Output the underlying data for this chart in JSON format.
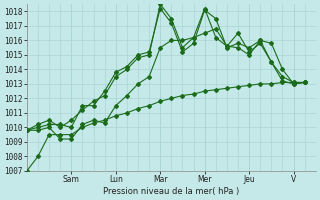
{
  "xlabel": "Pression niveau de la mer( hPa )",
  "bg_color": "#c5e8e8",
  "grid_color": "#aad4d4",
  "line_color": "#1a6b1a",
  "ylim": [
    1007,
    1018.5
  ],
  "yticks": [
    1007,
    1008,
    1009,
    1010,
    1011,
    1012,
    1013,
    1014,
    1015,
    1016,
    1017,
    1018
  ],
  "day_labels": [
    "Sam",
    "Lun",
    "Mar",
    "Mer",
    "Jeu",
    "V"
  ],
  "day_positions": [
    2.0,
    4.0,
    6.0,
    8.0,
    10.0,
    12.0
  ],
  "xlim": [
    0,
    13.0
  ],
  "series": [
    {
      "x": [
        0,
        0.5,
        1.0,
        1.5,
        2.0,
        2.5,
        3.0,
        3.5,
        4.0,
        4.5,
        5.0,
        5.5,
        6.0,
        6.5,
        7.0,
        7.5,
        8.0,
        8.5,
        9.0,
        9.5,
        10.0,
        10.5,
        11.0,
        11.5,
        12.0,
        12.5
      ],
      "y": [
        1007.0,
        1008.0,
        1009.5,
        1009.5,
        1009.5,
        1010.0,
        1010.3,
        1010.5,
        1010.8,
        1011.0,
        1011.3,
        1011.5,
        1011.8,
        1012.0,
        1012.2,
        1012.3,
        1012.5,
        1012.6,
        1012.7,
        1012.8,
        1012.9,
        1013.0,
        1013.0,
        1013.1,
        1013.1,
        1013.1
      ]
    },
    {
      "x": [
        0,
        0.5,
        1.0,
        1.5,
        2.0,
        2.5,
        3.0,
        3.5,
        4.0,
        4.5,
        5.0,
        5.5,
        6.0,
        6.5,
        7.0,
        7.5,
        8.0,
        8.5,
        9.0,
        9.5,
        10.0,
        10.5,
        11.0,
        11.5,
        12.0,
        12.5
      ],
      "y": [
        1009.8,
        1009.8,
        1010.0,
        1009.2,
        1009.2,
        1010.2,
        1010.5,
        1010.3,
        1011.5,
        1012.2,
        1013.0,
        1013.5,
        1015.5,
        1016.0,
        1016.0,
        1016.2,
        1016.5,
        1016.8,
        1015.6,
        1015.5,
        1015.0,
        1016.0,
        1015.8,
        1014.0,
        1013.0,
        1013.1
      ]
    },
    {
      "x": [
        0,
        0.5,
        1.0,
        1.5,
        2.0,
        2.5,
        3.0,
        3.5,
        4.0,
        4.5,
        5.0,
        5.5,
        6.0,
        6.5,
        7.0,
        7.5,
        8.0,
        8.5,
        9.0,
        9.5,
        10.0,
        10.5,
        11.0,
        11.5,
        12.0,
        12.5
      ],
      "y": [
        1009.8,
        1010.0,
        1010.2,
        1010.2,
        1010.0,
        1011.5,
        1011.5,
        1012.5,
        1013.8,
        1014.2,
        1015.0,
        1015.2,
        1018.2,
        1017.2,
        1015.2,
        1015.8,
        1018.1,
        1017.5,
        1015.5,
        1015.8,
        1015.5,
        1016.0,
        1014.5,
        1013.5,
        1013.1,
        1013.1
      ]
    },
    {
      "x": [
        0,
        0.5,
        1.0,
        1.5,
        2.0,
        2.5,
        3.0,
        3.5,
        4.0,
        4.5,
        5.0,
        5.5,
        6.0,
        6.5,
        7.0,
        7.5,
        8.0,
        8.5,
        9.0,
        9.5,
        10.0,
        10.5,
        11.0,
        11.5,
        12.0,
        12.5
      ],
      "y": [
        1009.8,
        1010.2,
        1010.5,
        1010.0,
        1010.5,
        1011.2,
        1011.8,
        1012.2,
        1013.5,
        1014.0,
        1014.8,
        1015.0,
        1018.5,
        1017.5,
        1015.5,
        1016.2,
        1018.2,
        1016.2,
        1015.6,
        1016.5,
        1015.2,
        1015.8,
        1014.5,
        1013.2,
        1013.0,
        1013.1
      ]
    }
  ]
}
